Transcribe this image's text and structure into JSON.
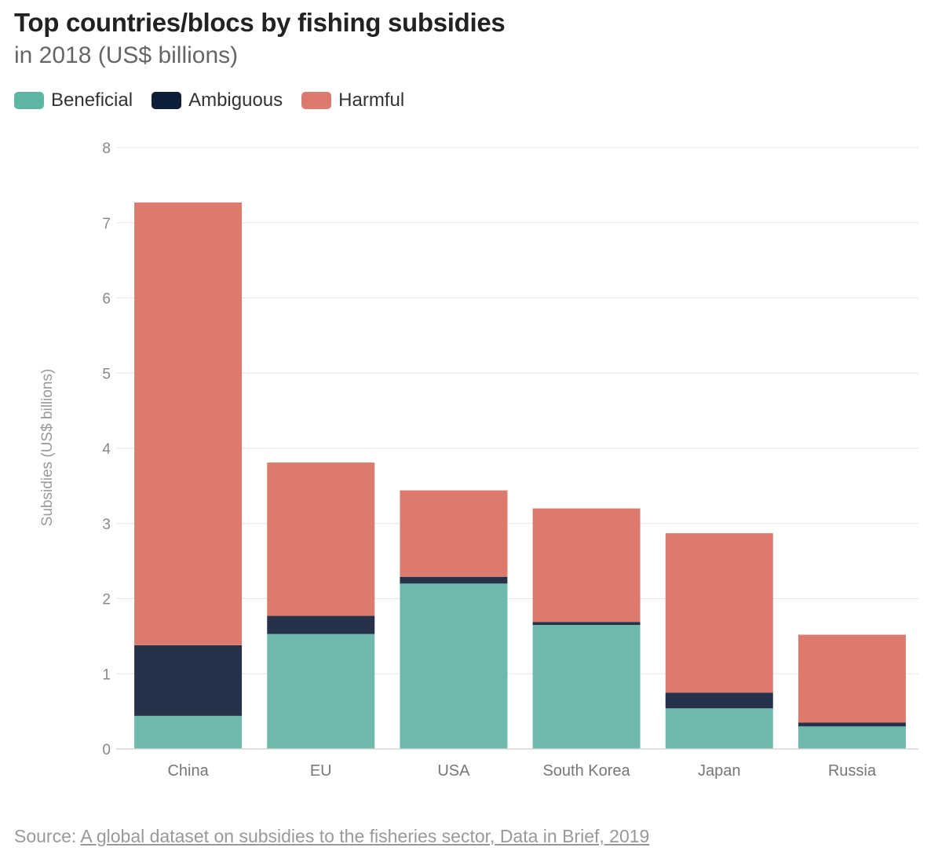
{
  "title": "Top countries/blocs by fishing subsidies",
  "subtitle": "in 2018 (US$ billions)",
  "legend": [
    {
      "label": "Beneficial",
      "color": "#6dbaac"
    },
    {
      "label": "Ambiguous",
      "color": "#0f1e38"
    },
    {
      "label": "Harmful",
      "color": "#dc7b6d"
    }
  ],
  "source": {
    "prefix": "Source:",
    "link_text": "A global dataset on subsidies to the fisheries sector, Data in Brief, 2019"
  },
  "chart_data": {
    "type": "bar",
    "stacked": true,
    "title": "Top countries/blocs by fishing subsidies",
    "subtitle": "in 2018 (US$ billions)",
    "xlabel": "",
    "ylabel": "Subsidies (US$ billions)",
    "ylim": [
      0,
      8
    ],
    "yticks": [
      0,
      1,
      2,
      3,
      4,
      5,
      6,
      7,
      8
    ],
    "grid": true,
    "legend_position": "top-left",
    "categories": [
      "China",
      "EU",
      "USA",
      "South Korea",
      "Japan",
      "Russia"
    ],
    "series": [
      {
        "name": "Beneficial",
        "color": "#6dbaac",
        "values": [
          0.44,
          1.53,
          2.2,
          1.65,
          0.54,
          0.3
        ]
      },
      {
        "name": "Ambiguous",
        "color": "#26324a",
        "values": [
          0.94,
          0.24,
          0.09,
          0.04,
          0.21,
          0.05
        ]
      },
      {
        "name": "Harmful",
        "color": "#dc7b6d",
        "values": [
          5.89,
          2.04,
          1.15,
          1.51,
          2.12,
          1.17
        ]
      }
    ]
  }
}
